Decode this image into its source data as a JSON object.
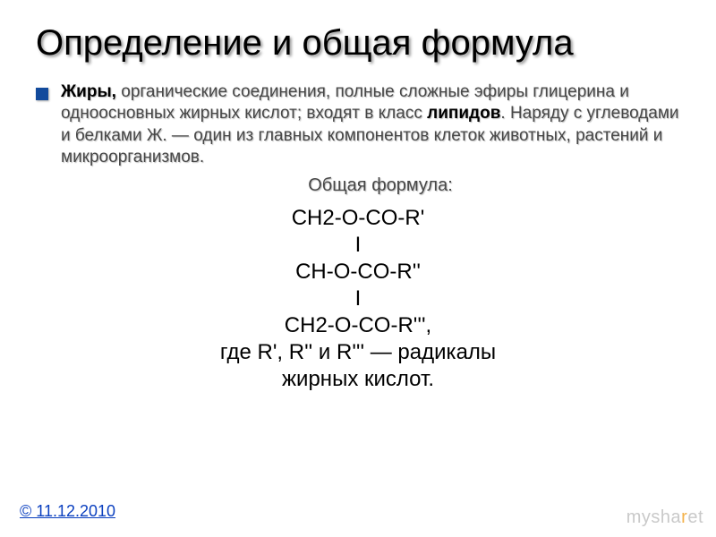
{
  "title": "Определение и общая формула",
  "bullet": {
    "bold1": "Жиры, ",
    "plain1": "органические соединения, полные сложные эфиры глицерина и одноосновных жирных кислот; входят в класс ",
    "bold2": "липидов",
    "plain2": ". Наряду с углеводами и белками Ж. — один из главных компонентов клеток животных, растений и микроорганизмов."
  },
  "subtitle": "Общая формула:",
  "formula": {
    "l1": "CH2-O-CO-R'",
    "l2": "I",
    "l3": "CH-O-CO-R''",
    "l4": "I",
    "l5": "CH2-O-CO-R''',",
    "l6a": "где ",
    "l6r": "R', R'' и R'''",
    "l6b": " — радикалы",
    "l7": "жирных кислот."
  },
  "footer_link": "© 11.12.2010",
  "watermark_plain": "mysha",
  "watermark_orange": "r",
  "watermark_plain2": "e",
  "watermark_plain3": "t",
  "colors": {
    "bullet": "#124a9c",
    "link": "#0a3fbf",
    "body_text": "#474747",
    "title_text": "#000000",
    "watermark_gray": "#c9c9c9",
    "watermark_orange": "#f3b24a",
    "background": "#ffffff"
  },
  "fontsize": {
    "title": 40,
    "body": 19,
    "subtitle": 20,
    "formula": 24,
    "footer": 18,
    "watermark": 20
  }
}
